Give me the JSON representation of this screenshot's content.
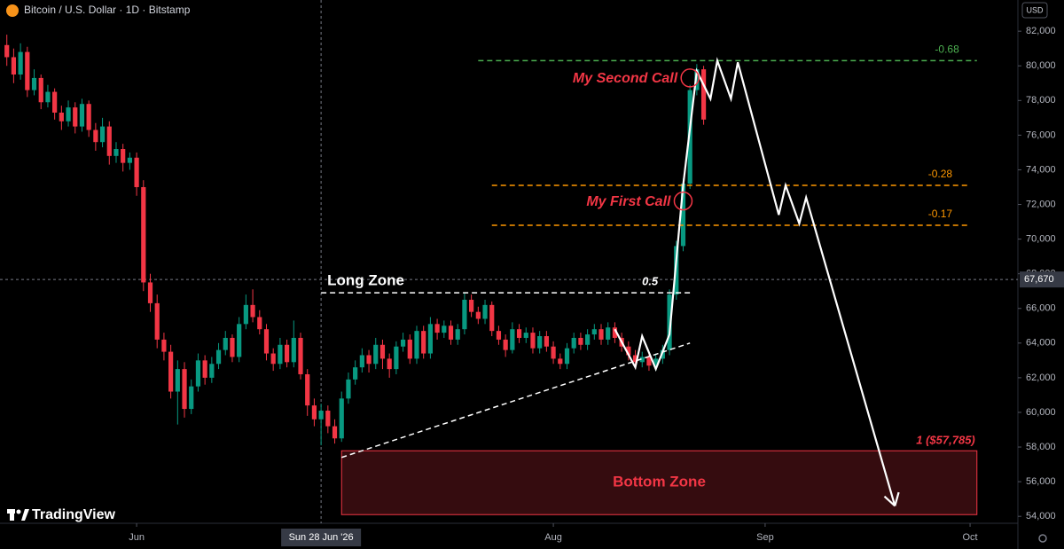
{
  "header": {
    "title": "Bitcoin / U.S. Dollar · 1D · Bitstamp",
    "currency": "USD",
    "logo": "TradingView"
  },
  "chart_data": {
    "type": "candlestick",
    "x": [
      "2026-05-13",
      "2026-05-14",
      "2026-05-15",
      "2026-05-16",
      "2026-05-17",
      "2026-05-18",
      "2026-05-19",
      "2026-05-20",
      "2026-05-21",
      "2026-05-22",
      "2026-05-23",
      "2026-05-24",
      "2026-05-25",
      "2026-05-26",
      "2026-05-27",
      "2026-05-28",
      "2026-05-29",
      "2026-05-30",
      "2026-05-31",
      "2026-06-01",
      "2026-06-02",
      "2026-06-03",
      "2026-06-04",
      "2026-06-05",
      "2026-06-06",
      "2026-06-07",
      "2026-06-08",
      "2026-06-09",
      "2026-06-10",
      "2026-06-11",
      "2026-06-12",
      "2026-06-13",
      "2026-06-14",
      "2026-06-15",
      "2026-06-16",
      "2026-06-17",
      "2026-06-18",
      "2026-06-19",
      "2026-06-20",
      "2026-06-21",
      "2026-06-22",
      "2026-06-23",
      "2026-06-24",
      "2026-06-25",
      "2026-06-26",
      "2026-06-27",
      "2026-06-28",
      "2026-06-29",
      "2026-06-30",
      "2026-07-01",
      "2026-07-02",
      "2026-07-03",
      "2026-07-04",
      "2026-07-05",
      "2026-07-06",
      "2026-07-07",
      "2026-07-08",
      "2026-07-09",
      "2026-07-10",
      "2026-07-11",
      "2026-07-12",
      "2026-07-13",
      "2026-07-14",
      "2026-07-15",
      "2026-07-16",
      "2026-07-17",
      "2026-07-18",
      "2026-07-19",
      "2026-07-20",
      "2026-07-21",
      "2026-07-22",
      "2026-07-23",
      "2026-07-24",
      "2026-07-25",
      "2026-07-26",
      "2026-07-27",
      "2026-07-28",
      "2026-07-29",
      "2026-07-30",
      "2026-07-31",
      "2026-08-01",
      "2026-08-02",
      "2026-08-03",
      "2026-08-04",
      "2026-08-05",
      "2026-08-06",
      "2026-08-07",
      "2026-08-08",
      "2026-08-09",
      "2026-08-10",
      "2026-08-11",
      "2026-08-12",
      "2026-08-13",
      "2026-08-14",
      "2026-08-15",
      "2026-08-16",
      "2026-08-17",
      "2026-08-18",
      "2026-08-19",
      "2026-08-20",
      "2026-08-21",
      "2026-08-22",
      "2026-08-23"
    ],
    "candles": [
      [
        81200,
        81800,
        80000,
        80500
      ],
      [
        80500,
        81000,
        79000,
        79500
      ],
      [
        79500,
        81300,
        79200,
        80800
      ],
      [
        80800,
        81100,
        78200,
        78600
      ],
      [
        78600,
        79800,
        78300,
        79300
      ],
      [
        79300,
        79500,
        77500,
        77900
      ],
      [
        77900,
        78900,
        77600,
        78500
      ],
      [
        78500,
        78700,
        76900,
        77300
      ],
      [
        77300,
        77700,
        76300,
        76800
      ],
      [
        76800,
        78000,
        76500,
        77600
      ],
      [
        77600,
        77900,
        76100,
        76500
      ],
      [
        76500,
        78100,
        76200,
        77800
      ],
      [
        77800,
        78000,
        75900,
        76300
      ],
      [
        76300,
        76700,
        75100,
        75600
      ],
      [
        75600,
        77000,
        75300,
        76500
      ],
      [
        76500,
        76800,
        74300,
        74800
      ],
      [
        74800,
        75600,
        74400,
        75200
      ],
      [
        75200,
        75500,
        73900,
        74400
      ],
      [
        74400,
        75000,
        74000,
        74700
      ],
      [
        74700,
        75000,
        72500,
        73000
      ],
      [
        73000,
        73400,
        67000,
        67500
      ],
      [
        67500,
        68000,
        65800,
        66300
      ],
      [
        66300,
        66800,
        63700,
        64200
      ],
      [
        64200,
        64600,
        63000,
        63500
      ],
      [
        63500,
        63900,
        60800,
        61200
      ],
      [
        61200,
        63000,
        59300,
        62500
      ],
      [
        62500,
        62900,
        59700,
        60200
      ],
      [
        60200,
        61900,
        59900,
        61500
      ],
      [
        61500,
        63400,
        61200,
        63000
      ],
      [
        63000,
        63300,
        61600,
        62000
      ],
      [
        62000,
        63200,
        61700,
        62800
      ],
      [
        62800,
        64000,
        62500,
        63600
      ],
      [
        63600,
        64700,
        63300,
        64300
      ],
      [
        64300,
        64500,
        62900,
        63200
      ],
      [
        63200,
        65500,
        62900,
        65100
      ],
      [
        65100,
        66800,
        64800,
        66200
      ],
      [
        66200,
        67100,
        65200,
        65500
      ],
      [
        65500,
        65900,
        64500,
        64800
      ],
      [
        64800,
        65100,
        63000,
        63400
      ],
      [
        63400,
        63700,
        62400,
        62800
      ],
      [
        62800,
        64300,
        62500,
        63900
      ],
      [
        63900,
        64200,
        62600,
        62900
      ],
      [
        62900,
        65300,
        62600,
        64300
      ],
      [
        64300,
        64600,
        61900,
        62200
      ],
      [
        62200,
        62500,
        59800,
        60400
      ],
      [
        60400,
        60800,
        59200,
        59600
      ],
      [
        59600,
        60500,
        58100,
        60100
      ],
      [
        60100,
        60400,
        58800,
        59200
      ],
      [
        59200,
        59600,
        58200,
        58500
      ],
      [
        58500,
        61200,
        58300,
        60800
      ],
      [
        60800,
        62300,
        60500,
        61900
      ],
      [
        61900,
        63000,
        61600,
        62600
      ],
      [
        62600,
        63700,
        62300,
        63300
      ],
      [
        63300,
        63600,
        62300,
        62800
      ],
      [
        62800,
        64300,
        62500,
        63900
      ],
      [
        63900,
        64200,
        62500,
        63100
      ],
      [
        63100,
        63400,
        62000,
        62500
      ],
      [
        62500,
        64100,
        62200,
        63800
      ],
      [
        63800,
        64600,
        63500,
        64200
      ],
      [
        64200,
        64500,
        62800,
        63100
      ],
      [
        63100,
        65000,
        62800,
        64700
      ],
      [
        64700,
        65000,
        63100,
        63400
      ],
      [
        63400,
        65500,
        63100,
        65100
      ],
      [
        65100,
        65400,
        64200,
        64600
      ],
      [
        64600,
        65300,
        64300,
        65000
      ],
      [
        65000,
        65300,
        63900,
        64200
      ],
      [
        64200,
        65100,
        63900,
        64800
      ],
      [
        64800,
        66900,
        64500,
        66500
      ],
      [
        66500,
        66800,
        65500,
        65800
      ],
      [
        65800,
        66100,
        65100,
        65400
      ],
      [
        65400,
        66500,
        65100,
        66200
      ],
      [
        66200,
        66400,
        64400,
        64700
      ],
      [
        64700,
        65000,
        63900,
        64200
      ],
      [
        64200,
        64500,
        63200,
        63600
      ],
      [
        63600,
        65200,
        63400,
        64800
      ],
      [
        64800,
        65100,
        64000,
        64300
      ],
      [
        64300,
        64900,
        64000,
        64600
      ],
      [
        64600,
        64900,
        63400,
        63700
      ],
      [
        63700,
        64700,
        63400,
        64400
      ],
      [
        64400,
        64700,
        63500,
        63800
      ],
      [
        63800,
        64100,
        62800,
        63100
      ],
      [
        63100,
        63400,
        62500,
        62800
      ],
      [
        62800,
        64000,
        62500,
        63700
      ],
      [
        63700,
        64600,
        63400,
        64300
      ],
      [
        64300,
        64600,
        63600,
        63900
      ],
      [
        63900,
        64800,
        63600,
        64500
      ],
      [
        64500,
        65100,
        64200,
        64800
      ],
      [
        64800,
        65100,
        63900,
        64200
      ],
      [
        64200,
        65200,
        63900,
        64900
      ],
      [
        64900,
        65200,
        64000,
        64300
      ],
      [
        64300,
        64600,
        63500,
        63800
      ],
      [
        63800,
        64100,
        63000,
        63300
      ],
      [
        63300,
        63600,
        62600,
        62900
      ],
      [
        62900,
        63500,
        62600,
        63200
      ],
      [
        63200,
        63500,
        62400,
        62700
      ],
      [
        62700,
        63400,
        62400,
        63100
      ],
      [
        63100,
        63900,
        62800,
        63600
      ],
      [
        63600,
        67100,
        63300,
        66800
      ],
      [
        66800,
        69900,
        66500,
        69600
      ],
      [
        69600,
        73500,
        69300,
        73200
      ],
      [
        73200,
        78900,
        72900,
        78600
      ],
      [
        78600,
        80100,
        78300,
        79800
      ],
      [
        79800,
        80000,
        76600,
        76900
      ]
    ],
    "up_color": "#089981",
    "down_color": "#f23645",
    "xlim": [
      "2026-05-12",
      "2026-10-08"
    ],
    "ylim": [
      53600,
      83800
    ],
    "xticks": [
      {
        "value": "2026-06-01",
        "label": "Jun"
      },
      {
        "value": "2026-08-01",
        "label": "Aug"
      },
      {
        "value": "2026-09-01",
        "label": "Sep"
      },
      {
        "value": "2026-10-01",
        "label": "Oct"
      }
    ],
    "yticks": [
      {
        "value": 54000,
        "label": "54,000"
      },
      {
        "value": 56000,
        "label": "56,000"
      },
      {
        "value": 58000,
        "label": "58,000"
      },
      {
        "value": 60000,
        "label": "60,000"
      },
      {
        "value": 62000,
        "label": "62,000"
      },
      {
        "value": 64000,
        "label": "64,000"
      },
      {
        "value": 66000,
        "label": "66,000"
      },
      {
        "value": 68000,
        "label": "68,000"
      },
      {
        "value": 70000,
        "label": "70,000"
      },
      {
        "value": 72000,
        "label": "72,000"
      },
      {
        "value": 74000,
        "label": "74,000"
      },
      {
        "value": 76000,
        "label": "76,000"
      },
      {
        "value": 78000,
        "label": "78,000"
      },
      {
        "value": 80000,
        "label": "80,000"
      },
      {
        "value": 82000,
        "label": "82,000"
      }
    ],
    "crosshair": {
      "x": {
        "value": "2026-06-28",
        "label": "Sun 28 Jun '26"
      },
      "y": {
        "value": 67670,
        "label": "67,670"
      }
    },
    "levels": [
      {
        "label": "-0.68",
        "value": 80300,
        "x": [
          "2026-07-21",
          "2026-10-02"
        ],
        "color": "#4caf50"
      },
      {
        "label": "-0.28",
        "value": 73100,
        "x": [
          "2026-07-23",
          "2026-10-01"
        ],
        "color": "#ff9800"
      },
      {
        "label": "-0.17",
        "value": 70800,
        "x": [
          "2026-07-23",
          "2026-10-01"
        ],
        "color": "#ff9800"
      },
      {
        "label": "0.5",
        "note": "Long Zone",
        "value": 66900,
        "x": [
          "2026-06-28",
          "2026-08-21"
        ],
        "color": "#ffffff"
      }
    ],
    "zone": {
      "label": "Bottom Zone",
      "level_label": "1 ($57,785)",
      "top": 57785,
      "bottom": 54100,
      "x": [
        "2026-07-01",
        "2026-10-02"
      ],
      "color": "#f23645"
    },
    "trendline": {
      "x": [
        "2026-07-01",
        "2026-08-21"
      ],
      "y": [
        57400,
        64000
      ]
    },
    "projection": {
      "x": [
        "2026-08-10",
        "2026-08-13",
        "2026-08-14",
        "2026-08-16",
        "2026-08-18",
        "2026-08-20",
        "2026-08-22",
        "2026-08-24",
        "2026-08-25",
        "2026-08-27",
        "2026-08-28",
        "2026-09-03",
        "2026-09-04",
        "2026-09-06",
        "2026-09-07",
        "2026-09-20"
      ],
      "y": [
        64800,
        62600,
        64400,
        62500,
        64500,
        73100,
        79700,
        78100,
        80300,
        78100,
        80200,
        71400,
        73100,
        70900,
        72400,
        54600
      ]
    },
    "calls": [
      {
        "label": "My First Call",
        "x": "2026-08-20",
        "y": 72200
      },
      {
        "label": "My Second Call",
        "x": "2026-08-21",
        "y": 79300
      }
    ]
  }
}
